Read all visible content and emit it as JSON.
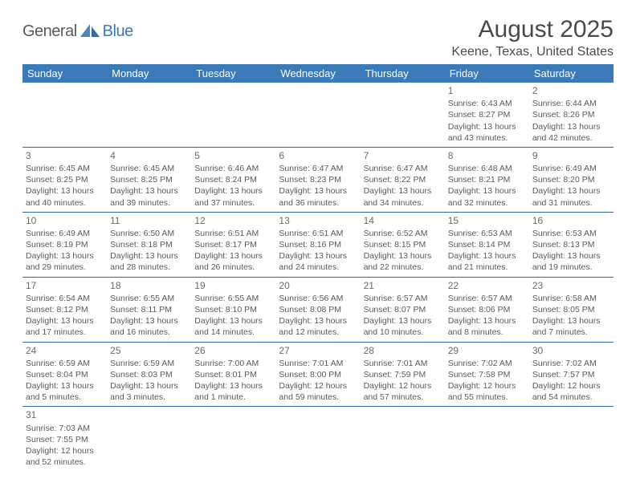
{
  "logo": {
    "dark": "General",
    "blue": "Blue"
  },
  "title": "August 2025",
  "location": "Keene, Texas, United States",
  "header_bg": "#3a7ab8",
  "header_fg": "#ffffff",
  "rule_color": "#2f6aa8",
  "dow": [
    "Sunday",
    "Monday",
    "Tuesday",
    "Wednesday",
    "Thursday",
    "Friday",
    "Saturday"
  ],
  "weeks": [
    [
      null,
      null,
      null,
      null,
      null,
      {
        "n": "1",
        "rise": "Sunrise: 6:43 AM",
        "set": "Sunset: 8:27 PM",
        "dl1": "Daylight: 13 hours",
        "dl2": "and 43 minutes."
      },
      {
        "n": "2",
        "rise": "Sunrise: 6:44 AM",
        "set": "Sunset: 8:26 PM",
        "dl1": "Daylight: 13 hours",
        "dl2": "and 42 minutes."
      }
    ],
    [
      {
        "n": "3",
        "rise": "Sunrise: 6:45 AM",
        "set": "Sunset: 8:25 PM",
        "dl1": "Daylight: 13 hours",
        "dl2": "and 40 minutes."
      },
      {
        "n": "4",
        "rise": "Sunrise: 6:45 AM",
        "set": "Sunset: 8:25 PM",
        "dl1": "Daylight: 13 hours",
        "dl2": "and 39 minutes."
      },
      {
        "n": "5",
        "rise": "Sunrise: 6:46 AM",
        "set": "Sunset: 8:24 PM",
        "dl1": "Daylight: 13 hours",
        "dl2": "and 37 minutes."
      },
      {
        "n": "6",
        "rise": "Sunrise: 6:47 AM",
        "set": "Sunset: 8:23 PM",
        "dl1": "Daylight: 13 hours",
        "dl2": "and 36 minutes."
      },
      {
        "n": "7",
        "rise": "Sunrise: 6:47 AM",
        "set": "Sunset: 8:22 PM",
        "dl1": "Daylight: 13 hours",
        "dl2": "and 34 minutes."
      },
      {
        "n": "8",
        "rise": "Sunrise: 6:48 AM",
        "set": "Sunset: 8:21 PM",
        "dl1": "Daylight: 13 hours",
        "dl2": "and 32 minutes."
      },
      {
        "n": "9",
        "rise": "Sunrise: 6:49 AM",
        "set": "Sunset: 8:20 PM",
        "dl1": "Daylight: 13 hours",
        "dl2": "and 31 minutes."
      }
    ],
    [
      {
        "n": "10",
        "rise": "Sunrise: 6:49 AM",
        "set": "Sunset: 8:19 PM",
        "dl1": "Daylight: 13 hours",
        "dl2": "and 29 minutes."
      },
      {
        "n": "11",
        "rise": "Sunrise: 6:50 AM",
        "set": "Sunset: 8:18 PM",
        "dl1": "Daylight: 13 hours",
        "dl2": "and 28 minutes."
      },
      {
        "n": "12",
        "rise": "Sunrise: 6:51 AM",
        "set": "Sunset: 8:17 PM",
        "dl1": "Daylight: 13 hours",
        "dl2": "and 26 minutes."
      },
      {
        "n": "13",
        "rise": "Sunrise: 6:51 AM",
        "set": "Sunset: 8:16 PM",
        "dl1": "Daylight: 13 hours",
        "dl2": "and 24 minutes."
      },
      {
        "n": "14",
        "rise": "Sunrise: 6:52 AM",
        "set": "Sunset: 8:15 PM",
        "dl1": "Daylight: 13 hours",
        "dl2": "and 22 minutes."
      },
      {
        "n": "15",
        "rise": "Sunrise: 6:53 AM",
        "set": "Sunset: 8:14 PM",
        "dl1": "Daylight: 13 hours",
        "dl2": "and 21 minutes."
      },
      {
        "n": "16",
        "rise": "Sunrise: 6:53 AM",
        "set": "Sunset: 8:13 PM",
        "dl1": "Daylight: 13 hours",
        "dl2": "and 19 minutes."
      }
    ],
    [
      {
        "n": "17",
        "rise": "Sunrise: 6:54 AM",
        "set": "Sunset: 8:12 PM",
        "dl1": "Daylight: 13 hours",
        "dl2": "and 17 minutes."
      },
      {
        "n": "18",
        "rise": "Sunrise: 6:55 AM",
        "set": "Sunset: 8:11 PM",
        "dl1": "Daylight: 13 hours",
        "dl2": "and 16 minutes."
      },
      {
        "n": "19",
        "rise": "Sunrise: 6:55 AM",
        "set": "Sunset: 8:10 PM",
        "dl1": "Daylight: 13 hours",
        "dl2": "and 14 minutes."
      },
      {
        "n": "20",
        "rise": "Sunrise: 6:56 AM",
        "set": "Sunset: 8:08 PM",
        "dl1": "Daylight: 13 hours",
        "dl2": "and 12 minutes."
      },
      {
        "n": "21",
        "rise": "Sunrise: 6:57 AM",
        "set": "Sunset: 8:07 PM",
        "dl1": "Daylight: 13 hours",
        "dl2": "and 10 minutes."
      },
      {
        "n": "22",
        "rise": "Sunrise: 6:57 AM",
        "set": "Sunset: 8:06 PM",
        "dl1": "Daylight: 13 hours",
        "dl2": "and 8 minutes."
      },
      {
        "n": "23",
        "rise": "Sunrise: 6:58 AM",
        "set": "Sunset: 8:05 PM",
        "dl1": "Daylight: 13 hours",
        "dl2": "and 7 minutes."
      }
    ],
    [
      {
        "n": "24",
        "rise": "Sunrise: 6:59 AM",
        "set": "Sunset: 8:04 PM",
        "dl1": "Daylight: 13 hours",
        "dl2": "and 5 minutes."
      },
      {
        "n": "25",
        "rise": "Sunrise: 6:59 AM",
        "set": "Sunset: 8:03 PM",
        "dl1": "Daylight: 13 hours",
        "dl2": "and 3 minutes."
      },
      {
        "n": "26",
        "rise": "Sunrise: 7:00 AM",
        "set": "Sunset: 8:01 PM",
        "dl1": "Daylight: 13 hours",
        "dl2": "and 1 minute."
      },
      {
        "n": "27",
        "rise": "Sunrise: 7:01 AM",
        "set": "Sunset: 8:00 PM",
        "dl1": "Daylight: 12 hours",
        "dl2": "and 59 minutes."
      },
      {
        "n": "28",
        "rise": "Sunrise: 7:01 AM",
        "set": "Sunset: 7:59 PM",
        "dl1": "Daylight: 12 hours",
        "dl2": "and 57 minutes."
      },
      {
        "n": "29",
        "rise": "Sunrise: 7:02 AM",
        "set": "Sunset: 7:58 PM",
        "dl1": "Daylight: 12 hours",
        "dl2": "and 55 minutes."
      },
      {
        "n": "30",
        "rise": "Sunrise: 7:02 AM",
        "set": "Sunset: 7:57 PM",
        "dl1": "Daylight: 12 hours",
        "dl2": "and 54 minutes."
      }
    ],
    [
      {
        "n": "31",
        "rise": "Sunrise: 7:03 AM",
        "set": "Sunset: 7:55 PM",
        "dl1": "Daylight: 12 hours",
        "dl2": "and 52 minutes."
      },
      null,
      null,
      null,
      null,
      null,
      null
    ]
  ]
}
